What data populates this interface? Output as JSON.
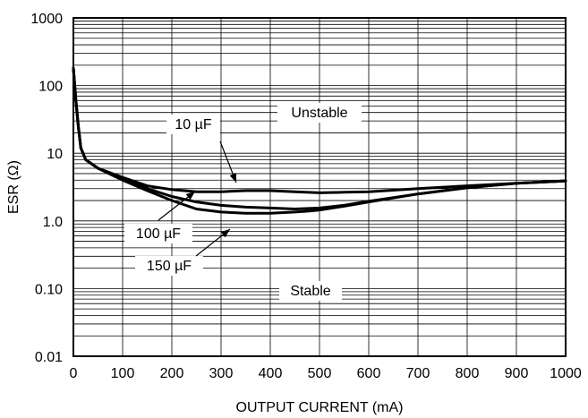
{
  "chart_data": {
    "type": "line",
    "title": "",
    "xlabel": "OUTPUT CURRENT (mA)",
    "ylabel": "ESR (Ω)",
    "xlim": [
      0,
      1000
    ],
    "ylim": [
      0.01,
      1000
    ],
    "yscale": "log",
    "grid": true,
    "x_ticks": [
      0,
      100,
      200,
      300,
      400,
      500,
      600,
      700,
      800,
      900,
      1000
    ],
    "x_tick_labels": [
      "0",
      "100",
      "200",
      "300",
      "400",
      "500",
      "600",
      "700",
      "800",
      "900",
      "1000"
    ],
    "y_ticks": [
      0.01,
      0.1,
      1,
      10,
      100,
      1000
    ],
    "y_tick_labels": [
      "0.01",
      "0.10",
      "1.0",
      "10",
      "100",
      "1000"
    ],
    "series": [
      {
        "name": "10 µF",
        "x": [
          0,
          5,
          10,
          15,
          25,
          50,
          100,
          150,
          200,
          250,
          300,
          350,
          400,
          450,
          500,
          550,
          600,
          700,
          800,
          900,
          1000
        ],
        "y": [
          180,
          60,
          25,
          12,
          8,
          6,
          4.4,
          3.3,
          2.9,
          2.7,
          2.7,
          2.8,
          2.8,
          2.7,
          2.6,
          2.65,
          2.7,
          3.0,
          3.3,
          3.6,
          3.9
        ]
      },
      {
        "name": "100 µF",
        "x": [
          0,
          5,
          10,
          15,
          25,
          50,
          100,
          150,
          200,
          250,
          300,
          350,
          400,
          450,
          500,
          550,
          600,
          700,
          800,
          900,
          1000
        ],
        "y": [
          180,
          60,
          25,
          12,
          8,
          6,
          4.2,
          3.0,
          2.3,
          1.9,
          1.7,
          1.6,
          1.55,
          1.5,
          1.55,
          1.7,
          1.95,
          2.5,
          3.1,
          3.6,
          3.9
        ]
      },
      {
        "name": "150 µF",
        "x": [
          0,
          5,
          10,
          15,
          25,
          50,
          100,
          150,
          200,
          250,
          300,
          350,
          400,
          450,
          480,
          500,
          550,
          600,
          700,
          800,
          900,
          1000
        ],
        "y": [
          180,
          60,
          25,
          12,
          8,
          6,
          4.0,
          2.8,
          2.0,
          1.5,
          1.35,
          1.3,
          1.3,
          1.35,
          1.4,
          1.45,
          1.65,
          1.9,
          2.5,
          3.1,
          3.6,
          3.9
        ]
      }
    ],
    "annotations": [
      {
        "text": "Unstable"
      },
      {
        "text": "Stable"
      },
      {
        "text": "10 µF"
      },
      {
        "text": "100 µF"
      },
      {
        "text": "150 µF"
      }
    ]
  }
}
